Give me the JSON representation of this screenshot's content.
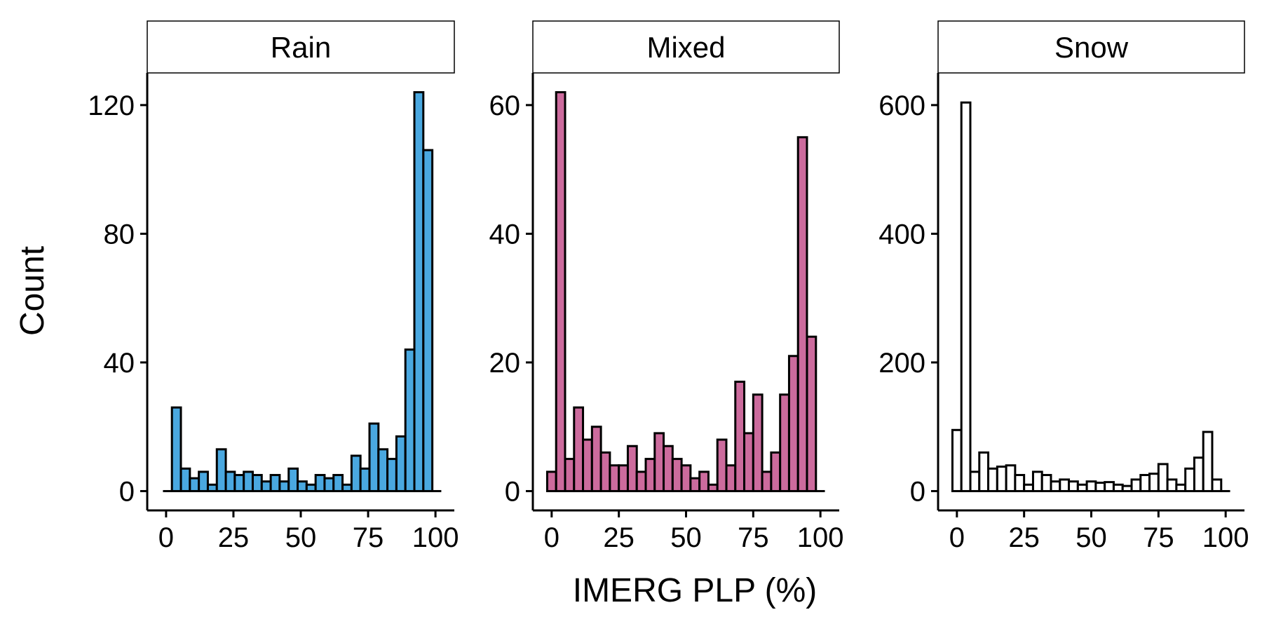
{
  "figure": {
    "xlabel": "IMERG PLP (%)",
    "ylabel": "Count"
  },
  "chart_data": [
    {
      "type": "bar",
      "title": "Rain",
      "color": "#4aa8e0",
      "bin_width": 3.33,
      "xlim": [
        -7,
        107
      ],
      "ylim": [
        -6,
        130
      ],
      "xticks": [
        0,
        25,
        50,
        75,
        100
      ],
      "yticks": [
        0,
        40,
        80,
        120
      ],
      "bins": [
        0.5,
        3.83,
        7.17,
        10.5,
        13.83,
        17.17,
        20.5,
        23.83,
        27.17,
        30.5,
        33.83,
        37.17,
        40.5,
        43.83,
        47.17,
        50.5,
        53.83,
        57.17,
        60.5,
        63.83,
        67.17,
        70.5,
        73.83,
        77.17,
        80.5,
        83.83,
        87.17,
        90.5,
        93.83,
        97.17,
        100.5
      ],
      "values": [
        0,
        26,
        7,
        4,
        6,
        2,
        13,
        6,
        5,
        6,
        5,
        3,
        5,
        3,
        7,
        3,
        2,
        5,
        4,
        5,
        2,
        11,
        7,
        21,
        13,
        10,
        17,
        44,
        124,
        106,
        0
      ]
    },
    {
      "type": "bar",
      "title": "Mixed",
      "color": "#cc6b9d",
      "bin_width": 3.33,
      "xlim": [
        -7,
        107
      ],
      "ylim": [
        -3,
        65
      ],
      "xticks": [
        0,
        25,
        50,
        75,
        100
      ],
      "yticks": [
        0,
        20,
        40,
        60
      ],
      "bins": [
        0,
        3.33,
        6.67,
        10,
        13.33,
        16.67,
        20,
        23.33,
        26.67,
        30,
        33.33,
        36.67,
        40,
        43.33,
        46.67,
        50,
        53.33,
        56.67,
        60,
        63.33,
        66.67,
        70,
        73.33,
        76.67,
        80,
        83.33,
        86.67,
        90,
        93.33,
        96.67,
        100
      ],
      "values": [
        3,
        62,
        5,
        13,
        8,
        10,
        6,
        4,
        4,
        7,
        3,
        5,
        9,
        7,
        5,
        4,
        2,
        3,
        1,
        8,
        4,
        17,
        9,
        15,
        3,
        6,
        15,
        21,
        55,
        24,
        0
      ]
    },
    {
      "type": "bar",
      "title": "Snow",
      "color": "#ffffff",
      "bin_width": 3.33,
      "xlim": [
        -7,
        107
      ],
      "ylim": [
        -30,
        650
      ],
      "xticks": [
        0,
        25,
        50,
        75,
        100
      ],
      "yticks": [
        0,
        200,
        400,
        600
      ],
      "bins": [
        0,
        3.33,
        6.67,
        10,
        13.33,
        16.67,
        20,
        23.33,
        26.67,
        30,
        33.33,
        36.67,
        40,
        43.33,
        46.67,
        50,
        53.33,
        56.67,
        60,
        63.33,
        66.67,
        70,
        73.33,
        76.67,
        80,
        83.33,
        86.67,
        90,
        93.33,
        96.67,
        100
      ],
      "values": [
        95,
        604,
        30,
        60,
        35,
        38,
        40,
        25,
        10,
        30,
        25,
        15,
        18,
        15,
        10,
        15,
        13,
        14,
        10,
        8,
        18,
        25,
        27,
        42,
        18,
        10,
        35,
        52,
        92,
        18,
        0
      ]
    }
  ]
}
